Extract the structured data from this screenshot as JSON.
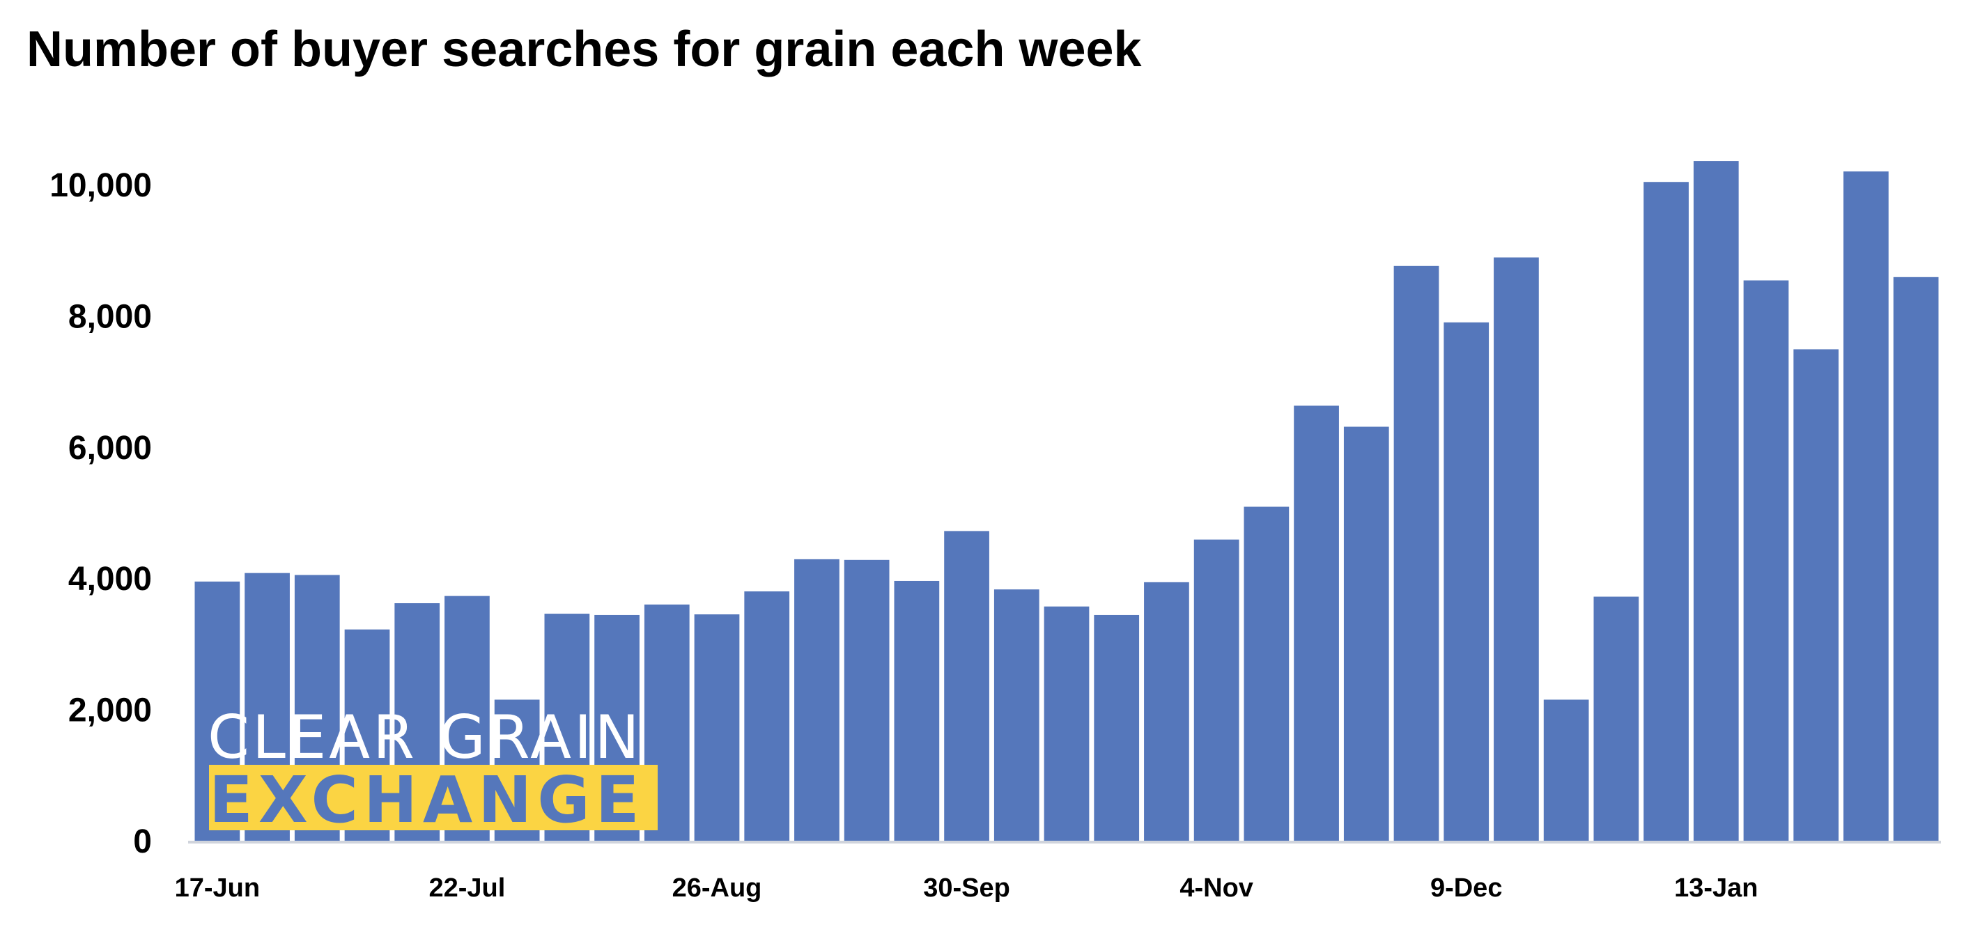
{
  "chart_data": {
    "type": "bar",
    "title": "Number of buyer searches for grain each week",
    "xlabel": "",
    "ylabel": "",
    "ylim": [
      0,
      10000
    ],
    "yticks": [
      "0",
      "2,000",
      "4,000",
      "6,000",
      "8,000",
      "10,000"
    ],
    "ytick_values": [
      0,
      2000,
      4000,
      6000,
      8000,
      10000
    ],
    "xtick_labels": [
      {
        "index": 0,
        "label": "17-Jun"
      },
      {
        "index": 5,
        "label": "22-Jul"
      },
      {
        "index": 10,
        "label": "26-Aug"
      },
      {
        "index": 15,
        "label": "30-Sep"
      },
      {
        "index": 20,
        "label": "4-Nov"
      },
      {
        "index": 25,
        "label": "9-Dec"
      },
      {
        "index": 30,
        "label": "13-Jan"
      }
    ],
    "values": [
      3950,
      4080,
      4050,
      3220,
      3620,
      3730,
      2150,
      3460,
      3440,
      3600,
      3450,
      3800,
      4290,
      4280,
      3960,
      4720,
      3830,
      3570,
      3440,
      3940,
      4590,
      5090,
      6630,
      6310,
      8760,
      7900,
      8890,
      2150,
      3720,
      10040,
      10360,
      8540,
      7490,
      10200,
      8590
    ],
    "grid": false,
    "legend": "none",
    "bar_color": "#5577bb",
    "axis_color": "#d0d4dc"
  },
  "logo": {
    "line1": "CLEAR GRAIN",
    "line2": "EXCHANGE",
    "accent_color": "#fbd443"
  }
}
